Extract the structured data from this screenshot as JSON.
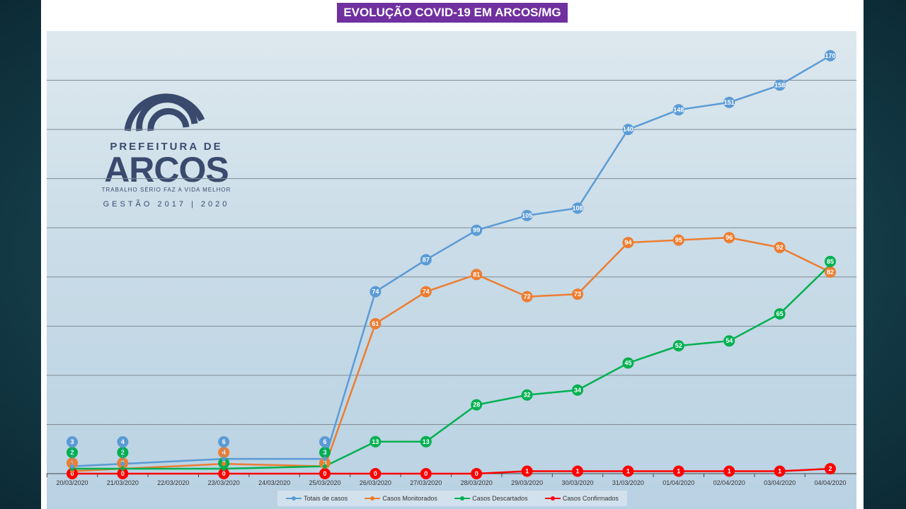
{
  "title": "EVOLUÇÃO COVID-19 EM ARCOS/MG",
  "logo": {
    "line1": "PREFEITURA DE",
    "line2": "ARCOS",
    "line3": "TRABALHO SÉRIO FAZ A VIDA MELHOR",
    "line4": "GESTÃO 2017 | 2020"
  },
  "chart_data": {
    "type": "line",
    "title": "EVOLUÇÃO COVID-19 EM ARCOS/MG",
    "categories": [
      "20/03/2020",
      "21/03/2020",
      "22/03/2020",
      "23/03/2020",
      "24/03/2020",
      "25/03/2020",
      "26/03/2020",
      "27/03/2020",
      "28/03/2020",
      "29/03/2020",
      "30/03/2020",
      "31/03/2020",
      "01/04/2020",
      "02/04/2020",
      "03/04/2020",
      "04/04/2020"
    ],
    "ylim": [
      0,
      180
    ],
    "grid": true,
    "legend": "bottom",
    "series": [
      {
        "name": "Totais de casos",
        "color": "#5b9bd5",
        "values": [
          3,
          4,
          null,
          6,
          null,
          6,
          74,
          87,
          99,
          105,
          108,
          140,
          148,
          151,
          158,
          170
        ]
      },
      {
        "name": "Casos Monitorados",
        "color": "#ed7d31",
        "values": [
          1,
          2,
          null,
          4,
          null,
          3,
          61,
          74,
          81,
          72,
          73,
          94,
          95,
          96,
          92,
          82
        ]
      },
      {
        "name": "Casos Descartados",
        "color": "#00b050",
        "values": [
          2,
          2,
          null,
          2,
          null,
          3,
          13,
          13,
          28,
          32,
          34,
          45,
          52,
          54,
          65,
          85
        ]
      },
      {
        "name": "Casos Confirmados",
        "color": "#ff0000",
        "values": [
          0,
          0,
          null,
          0,
          null,
          0,
          0,
          0,
          0,
          1,
          1,
          1,
          1,
          1,
          1,
          2
        ]
      }
    ]
  }
}
